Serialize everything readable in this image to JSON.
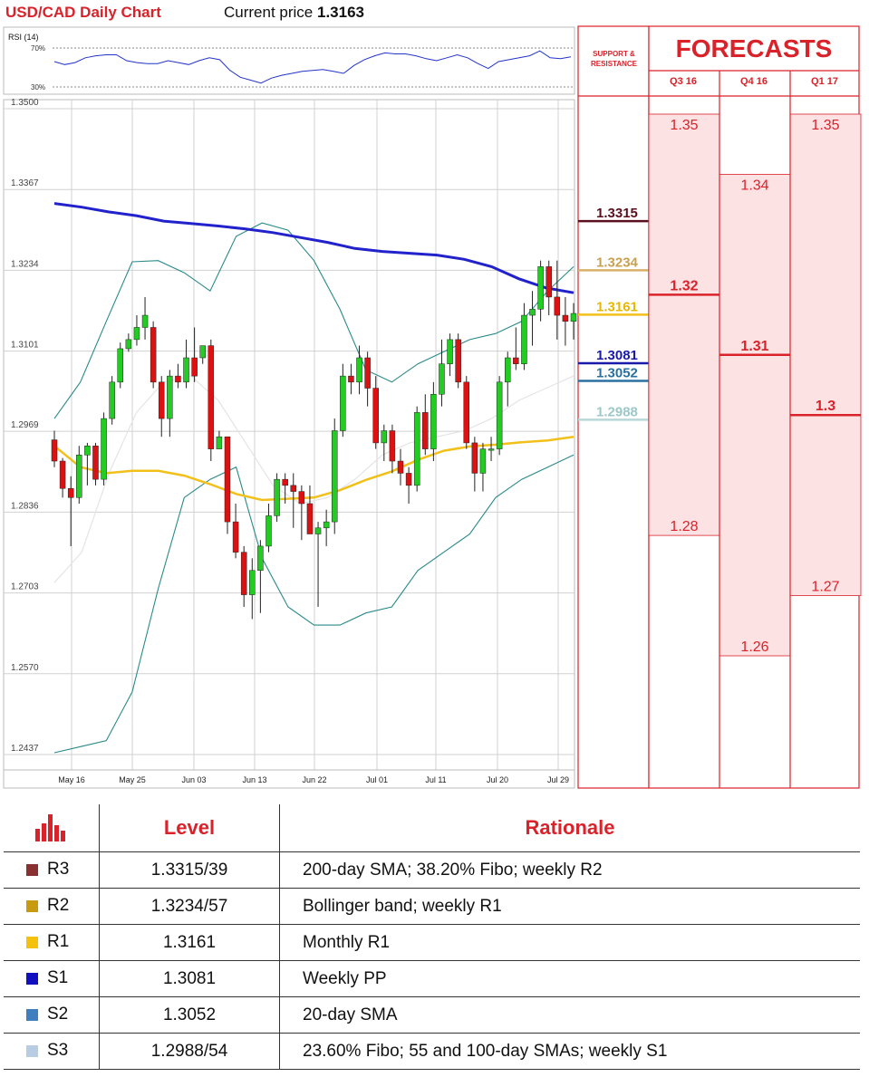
{
  "header": {
    "title": "USD/CAD Daily Chart",
    "price_prefix": "Current price",
    "price_value": "1.3163"
  },
  "rsi": {
    "label": "RSI (14)",
    "upper": "70%",
    "lower": "30%",
    "values": [
      56,
      53,
      55,
      60,
      62,
      63,
      63,
      57,
      55,
      54,
      54,
      57,
      55,
      53,
      57,
      60,
      58,
      47,
      40,
      37,
      34,
      39,
      42,
      44,
      46,
      47,
      48,
      46,
      44,
      52,
      58,
      62,
      65,
      64,
      64,
      62,
      59,
      57,
      60,
      63,
      60,
      54,
      49,
      56,
      58,
      60,
      62,
      67,
      60,
      59,
      61
    ]
  },
  "colors": {
    "bull": "#22cc22",
    "bear": "#dd1111",
    "sma200": "#2222cc",
    "sma": "#f2c01a",
    "bollinger": "#2a8a8a",
    "grid": "#d0d0d0",
    "red_accent": "#d9222a",
    "forecast_fill": "#fde2e4"
  },
  "chart_data": {
    "type": "candlestick",
    "y_ticks": [
      "1.3500",
      "1.3367",
      "1.3234",
      "1.3101",
      "1.2969",
      "1.2836",
      "1.2703",
      "1.2570",
      "1.2437"
    ],
    "ylim": [
      1.2437,
      1.35
    ],
    "x_ticks": [
      "May 16",
      "May 25",
      "Jun 03",
      "Jun 13",
      "Jun 22",
      "Jul 01",
      "Jul 11",
      "Jul 20",
      "Jul 29"
    ],
    "candles": [
      [
        1.2955,
        1.297,
        1.291,
        1.292
      ],
      [
        1.292,
        1.2925,
        1.286,
        1.2875
      ],
      [
        1.2875,
        1.2895,
        1.278,
        1.286
      ],
      [
        1.286,
        1.2945,
        1.285,
        1.293
      ],
      [
        1.293,
        1.295,
        1.288,
        1.2945
      ],
      [
        1.2945,
        1.295,
        1.288,
        1.289
      ],
      [
        1.289,
        1.3,
        1.288,
        1.299
      ],
      [
        1.299,
        1.306,
        1.298,
        1.305
      ],
      [
        1.305,
        1.3115,
        1.304,
        1.3105
      ],
      [
        1.3105,
        1.313,
        1.31,
        1.312
      ],
      [
        1.312,
        1.316,
        1.311,
        1.314
      ],
      [
        1.314,
        1.319,
        1.312,
        1.316
      ],
      [
        1.314,
        1.315,
        1.304,
        1.305
      ],
      [
        1.305,
        1.306,
        1.296,
        1.299
      ],
      [
        1.299,
        1.307,
        1.296,
        1.306
      ],
      [
        1.306,
        1.308,
        1.304,
        1.305
      ],
      [
        1.305,
        1.312,
        1.304,
        1.309
      ],
      [
        1.309,
        1.314,
        1.305,
        1.306
      ],
      [
        1.309,
        1.31,
        1.308,
        1.311
      ],
      [
        1.311,
        1.312,
        1.292,
        1.294
      ],
      [
        1.294,
        1.297,
        1.294,
        1.296
      ],
      [
        1.296,
        1.296,
        1.28,
        1.282
      ],
      [
        1.282,
        1.285,
        1.276,
        1.277
      ],
      [
        1.277,
        1.278,
        1.268,
        1.27
      ],
      [
        1.27,
        1.276,
        1.266,
        1.274
      ],
      [
        1.274,
        1.279,
        1.267,
        1.278
      ],
      [
        1.278,
        1.285,
        1.277,
        1.283
      ],
      [
        1.283,
        1.29,
        1.282,
        1.289
      ],
      [
        1.289,
        1.29,
        1.285,
        1.288
      ],
      [
        1.288,
        1.29,
        1.281,
        1.287
      ],
      [
        1.287,
        1.288,
        1.279,
        1.285
      ],
      [
        1.285,
        1.288,
        1.28,
        1.28
      ],
      [
        1.28,
        1.282,
        1.268,
        1.281
      ],
      [
        1.281,
        1.284,
        1.278,
        1.282
      ],
      [
        1.282,
        1.299,
        1.28,
        1.297
      ],
      [
        1.297,
        1.308,
        1.296,
        1.306
      ],
      [
        1.306,
        1.308,
        1.303,
        1.305
      ],
      [
        1.305,
        1.311,
        1.303,
        1.309
      ],
      [
        1.309,
        1.31,
        1.301,
        1.304
      ],
      [
        1.304,
        1.306,
        1.294,
        1.295
      ],
      [
        1.295,
        1.298,
        1.292,
        1.297
      ],
      [
        1.297,
        1.298,
        1.29,
        1.292
      ],
      [
        1.292,
        1.294,
        1.288,
        1.29
      ],
      [
        1.29,
        1.291,
        1.285,
        1.288
      ],
      [
        1.288,
        1.301,
        1.287,
        1.3
      ],
      [
        1.3,
        1.303,
        1.293,
        1.294
      ],
      [
        1.294,
        1.305,
        1.292,
        1.303
      ],
      [
        1.303,
        1.312,
        1.301,
        1.308
      ],
      [
        1.308,
        1.313,
        1.306,
        1.312
      ],
      [
        1.312,
        1.313,
        1.304,
        1.305
      ],
      [
        1.305,
        1.306,
        1.294,
        1.295
      ],
      [
        1.295,
        1.296,
        1.287,
        1.29
      ],
      [
        1.29,
        1.295,
        1.287,
        1.294
      ],
      [
        1.294,
        1.296,
        1.292,
        1.294
      ],
      [
        1.294,
        1.306,
        1.293,
        1.305
      ],
      [
        1.305,
        1.31,
        1.301,
        1.309
      ],
      [
        1.309,
        1.314,
        1.307,
        1.308
      ],
      [
        1.308,
        1.318,
        1.307,
        1.316
      ],
      [
        1.316,
        1.32,
        1.311,
        1.317
      ],
      [
        1.317,
        1.325,
        1.315,
        1.324
      ],
      [
        1.324,
        1.325,
        1.316,
        1.319
      ],
      [
        1.319,
        1.325,
        1.312,
        1.316
      ],
      [
        1.316,
        1.319,
        1.311,
        1.315
      ],
      [
        1.315,
        1.318,
        1.312,
        1.3163
      ]
    ],
    "sma200": [
      1.3344,
      1.3338,
      1.333,
      1.3324,
      1.3315,
      1.3311,
      1.3307,
      1.3302,
      1.3296,
      1.3288,
      1.328,
      1.327,
      1.3265,
      1.3262,
      1.3259,
      1.3252,
      1.324,
      1.322,
      1.3205,
      1.3197
    ],
    "sma_yellow": [
      1.2945,
      1.291,
      1.29,
      1.2904,
      1.2904,
      1.2896,
      1.2882,
      1.2866,
      1.2856,
      1.2858,
      1.286,
      1.2872,
      1.2889,
      1.2903,
      1.2922,
      1.2937,
      1.2944,
      1.2947,
      1.2951,
      1.2954,
      1.296
    ],
    "boll_upper": [
      1.299,
      1.305,
      1.315,
      1.3248,
      1.325,
      1.323,
      1.32,
      1.329,
      1.3312,
      1.33,
      1.325,
      1.317,
      1.307,
      1.305,
      1.308,
      1.31,
      1.312,
      1.313,
      1.315,
      1.32,
      1.324
    ],
    "boll_lower": [
      1.244,
      1.245,
      1.246,
      1.254,
      1.271,
      1.286,
      1.289,
      1.291,
      1.276,
      1.268,
      1.265,
      1.265,
      1.267,
      1.268,
      1.274,
      1.277,
      1.28,
      1.286,
      1.289,
      1.291,
      1.293
    ],
    "boll_mid": [
      1.272,
      1.277,
      1.29,
      1.3,
      1.305,
      1.306,
      1.302,
      1.295,
      1.288,
      1.285,
      1.286,
      1.289,
      1.293,
      1.295,
      1.296,
      1.297,
      1.299,
      1.302,
      1.304,
      1.306
    ]
  },
  "sr_levels": [
    {
      "value": "1.3315",
      "price": 1.3315,
      "color": "#5a0f1e",
      "text_color": "#5a0f1e"
    },
    {
      "value": "1.3234",
      "price": 1.3234,
      "color": "#d8b06a",
      "text_color": "#c8a050"
    },
    {
      "value": "1.3161",
      "price": 1.3161,
      "color": "#f2c01a",
      "text_color": "#e8b800"
    },
    {
      "value": "1.3081",
      "price": 1.3081,
      "color": "#1a1aaa",
      "text_color": "#1a1aaa"
    },
    {
      "value": "1.3052",
      "price": 1.3052,
      "color": "#2a70a0",
      "text_color": "#2a70a0"
    },
    {
      "value": "1.2988",
      "price": 1.2988,
      "color": "#b8d8d8",
      "text_color": "#9cc8c8"
    }
  ],
  "forecasts": {
    "title": "FORECASTS",
    "sr_title": "SUPPORT & RESISTANCE",
    "columns": [
      {
        "label": "Q3 16",
        "high": "1.35",
        "high_v": 1.35,
        "mid": "1.32",
        "mid_v": 1.32,
        "low": "1.28",
        "low_v": 1.28
      },
      {
        "label": "Q4 16",
        "high": "1.34",
        "high_v": 1.34,
        "mid": "1.31",
        "mid_v": 1.31,
        "low": "1.26",
        "low_v": 1.26
      },
      {
        "label": "Q1 17",
        "high": "1.35",
        "high_v": 1.35,
        "mid": "1.3",
        "mid_v": 1.3,
        "low": "1.27",
        "low_v": 1.27
      }
    ]
  },
  "table": {
    "headers": {
      "level": "Level",
      "rationale": "Rationale"
    },
    "rows": [
      {
        "code": "R3",
        "color": "#8b3030",
        "level": "1.3315/39",
        "rationale": "200-day SMA; 38.20% Fibo; weekly R2"
      },
      {
        "code": "R2",
        "color": "#c89a10",
        "level": "1.3234/57",
        "rationale": "Bollinger band; weekly R1"
      },
      {
        "code": "R1",
        "color": "#f4c20d",
        "level": "1.3161",
        "rationale": "Monthly R1"
      },
      {
        "code": "S1",
        "color": "#1010c0",
        "level": "1.3081",
        "rationale": "Weekly PP"
      },
      {
        "code": "S2",
        "color": "#3f7fbf",
        "level": "1.3052",
        "rationale": "20-day SMA"
      },
      {
        "code": "S3",
        "color": "#b8cce4",
        "level": "1.2988/54",
        "rationale": "23.60% Fibo; 55 and 100-day SMAs; weekly S1"
      }
    ]
  }
}
